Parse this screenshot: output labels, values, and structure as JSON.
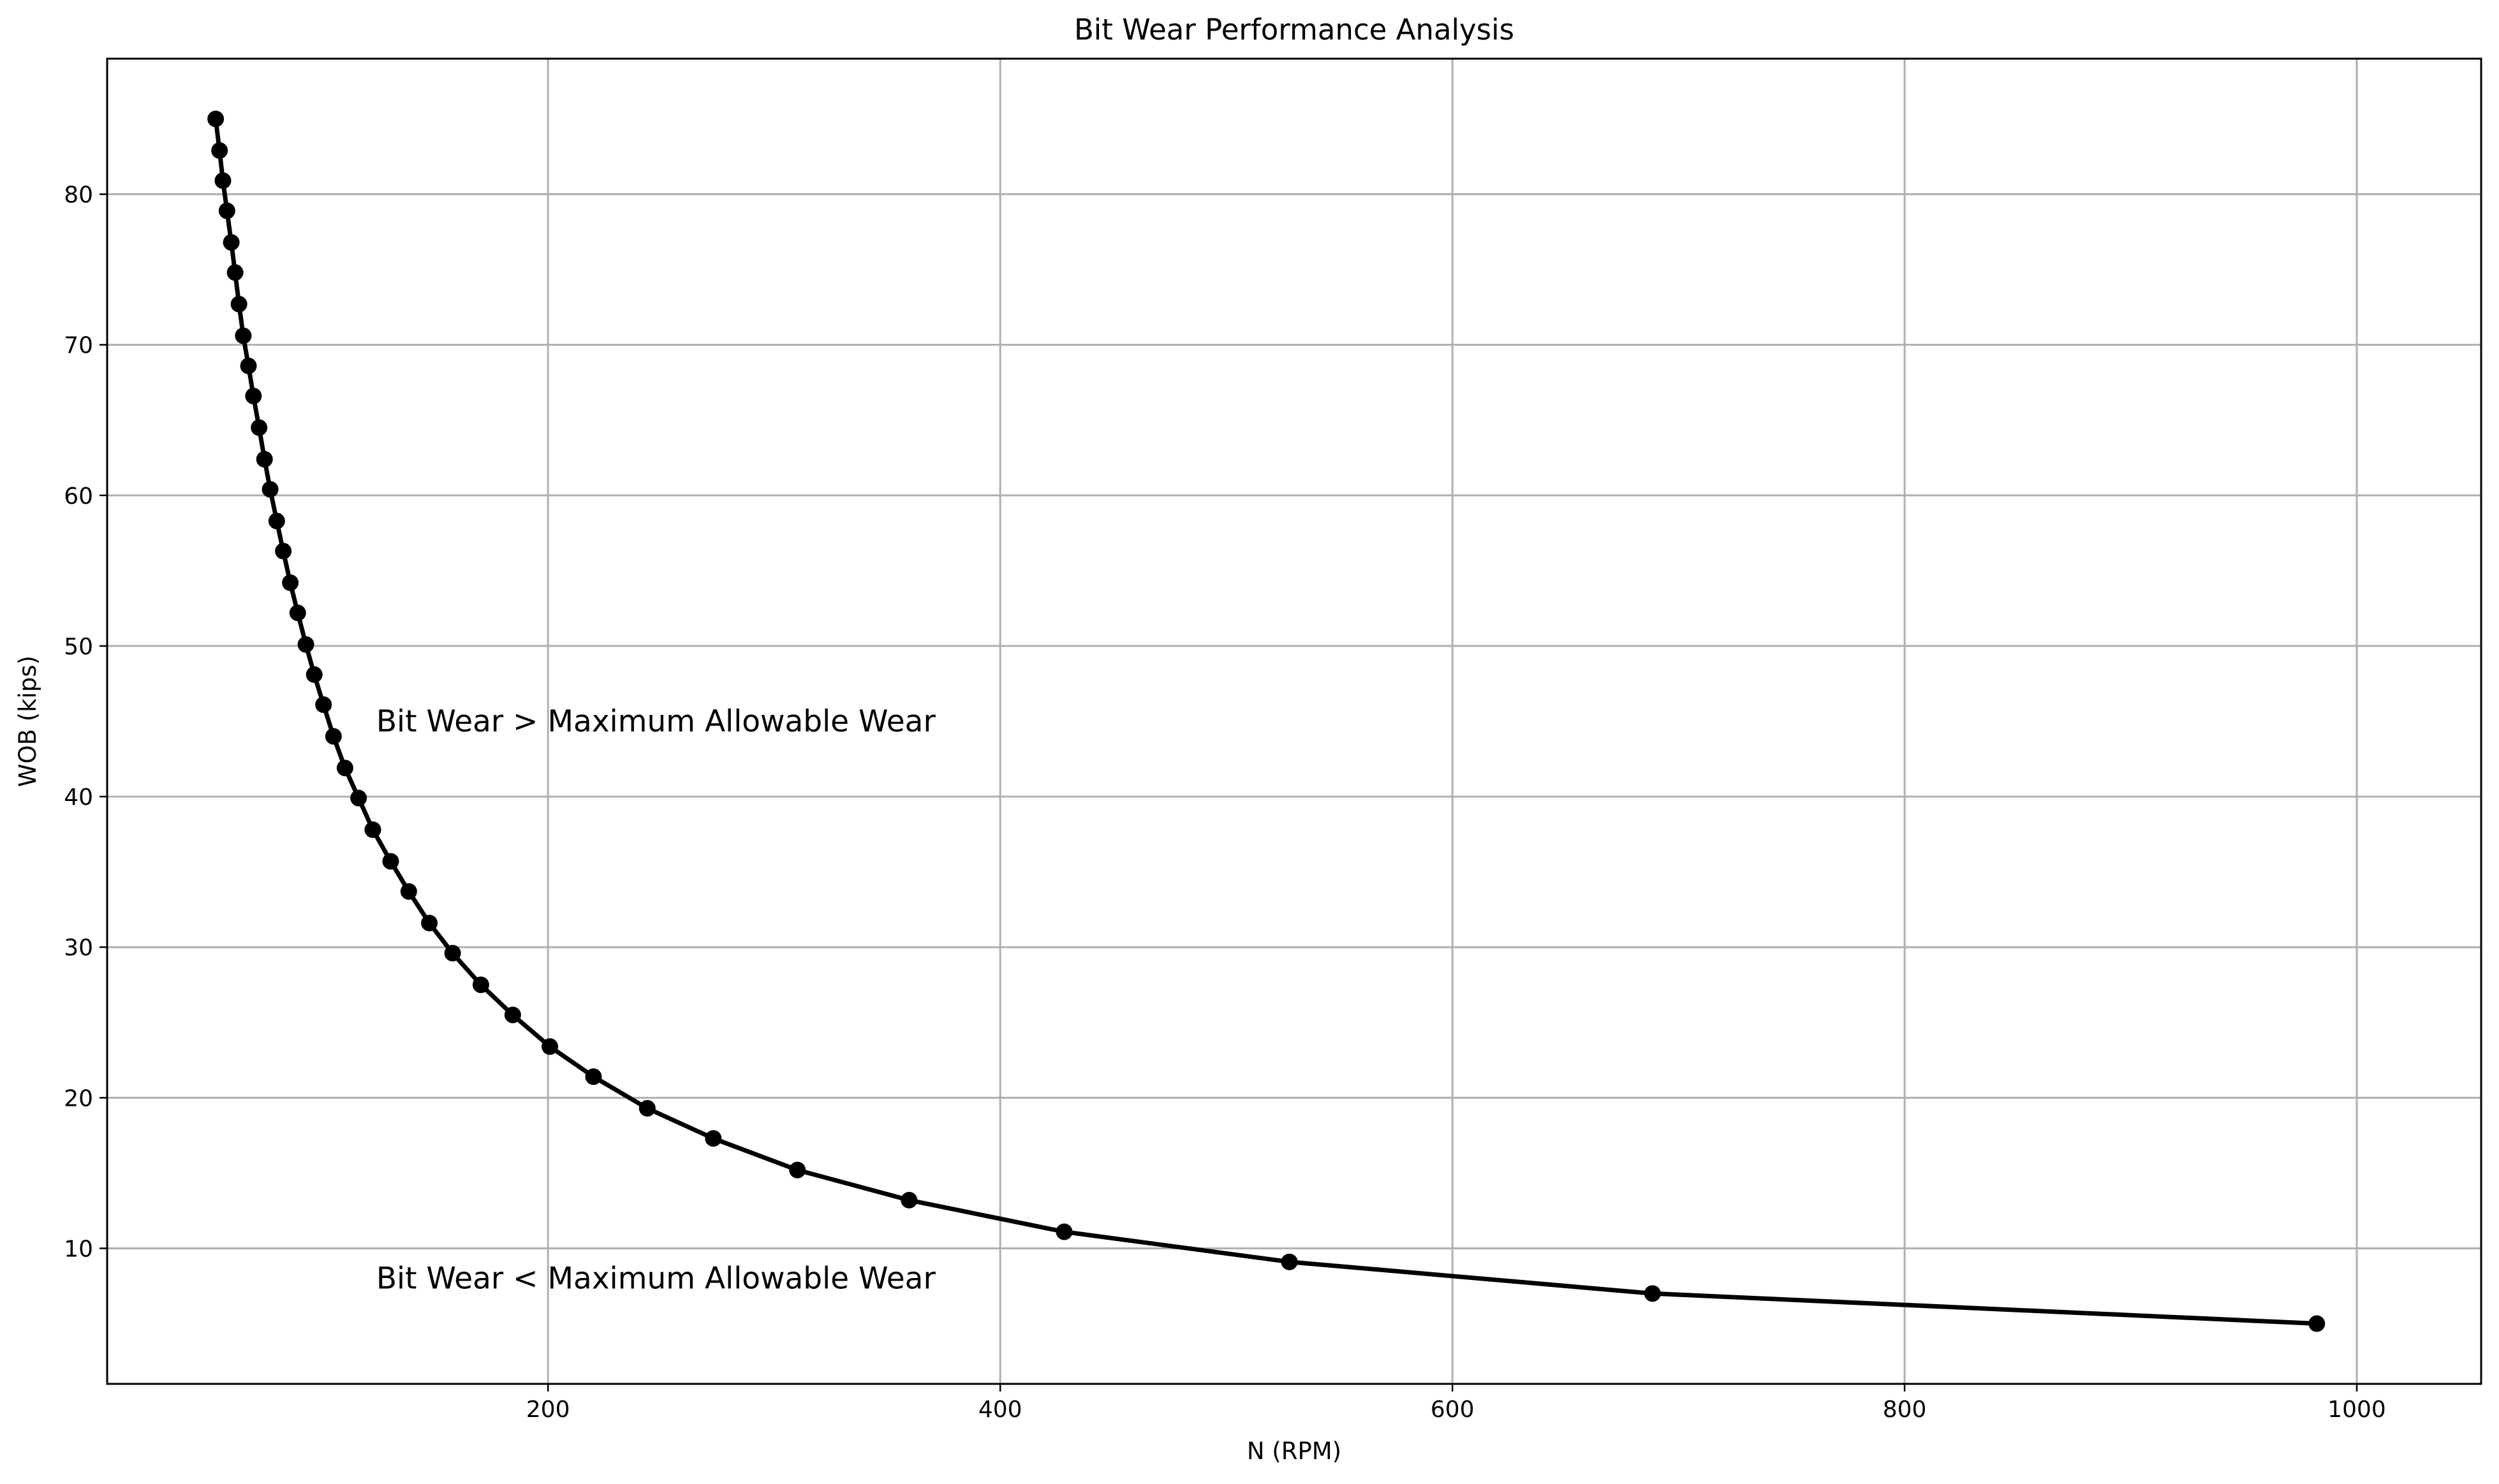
{
  "chart_data": {
    "type": "line",
    "title": "Bit Wear Performance Analysis",
    "xlabel": "N (RPM)",
    "ylabel": "WOB (kips)",
    "xlim": [
      5,
      1055
    ],
    "ylim": [
      1,
      89
    ],
    "xticks": [
      200,
      400,
      600,
      800,
      1000
    ],
    "yticks": [
      10,
      20,
      30,
      40,
      50,
      60,
      70,
      80
    ],
    "grid": true,
    "series": [
      {
        "color": "#000000",
        "marker": "circle",
        "points": [
          {
            "x": 53.0,
            "y": 85.0
          },
          {
            "x": 54.7,
            "y": 82.9
          },
          {
            "x": 56.2,
            "y": 80.9
          },
          {
            "x": 58.0,
            "y": 78.9
          },
          {
            "x": 59.9,
            "y": 76.8
          },
          {
            "x": 61.6,
            "y": 74.8
          },
          {
            "x": 63.3,
            "y": 72.7
          },
          {
            "x": 65.2,
            "y": 70.6
          },
          {
            "x": 67.5,
            "y": 68.6
          },
          {
            "x": 69.7,
            "y": 66.6
          },
          {
            "x": 72.2,
            "y": 64.5
          },
          {
            "x": 74.6,
            "y": 62.4
          },
          {
            "x": 77.1,
            "y": 60.4
          },
          {
            "x": 80.0,
            "y": 58.3
          },
          {
            "x": 82.9,
            "y": 56.3
          },
          {
            "x": 86.0,
            "y": 54.2
          },
          {
            "x": 89.3,
            "y": 52.2
          },
          {
            "x": 92.9,
            "y": 50.1
          },
          {
            "x": 96.6,
            "y": 48.1
          },
          {
            "x": 100.7,
            "y": 46.1
          },
          {
            "x": 105.1,
            "y": 44.0
          },
          {
            "x": 110.2,
            "y": 41.9
          },
          {
            "x": 116.2,
            "y": 39.9
          },
          {
            "x": 122.5,
            "y": 37.8
          },
          {
            "x": 130.4,
            "y": 35.7
          },
          {
            "x": 138.4,
            "y": 33.7
          },
          {
            "x": 147.5,
            "y": 31.6
          },
          {
            "x": 157.8,
            "y": 29.6
          },
          {
            "x": 170.3,
            "y": 27.5
          },
          {
            "x": 184.4,
            "y": 25.5
          },
          {
            "x": 200.8,
            "y": 23.4
          },
          {
            "x": 220.1,
            "y": 21.4
          },
          {
            "x": 243.9,
            "y": 19.3
          },
          {
            "x": 273.1,
            "y": 17.3
          },
          {
            "x": 310.3,
            "y": 15.2
          },
          {
            "x": 359.7,
            "y": 13.2
          },
          {
            "x": 428.3,
            "y": 11.1
          },
          {
            "x": 527.9,
            "y": 9.1
          },
          {
            "x": 688.5,
            "y": 7.0
          },
          {
            "x": 982.3,
            "y": 5.0
          }
        ]
      }
    ],
    "annotations": [
      {
        "text": "Bit Wear > Maximum Allowable Wear",
        "x": 124,
        "y": 45.0
      },
      {
        "text": "Bit Wear < Maximum Allowable Wear",
        "x": 124,
        "y": 8.0
      }
    ]
  }
}
